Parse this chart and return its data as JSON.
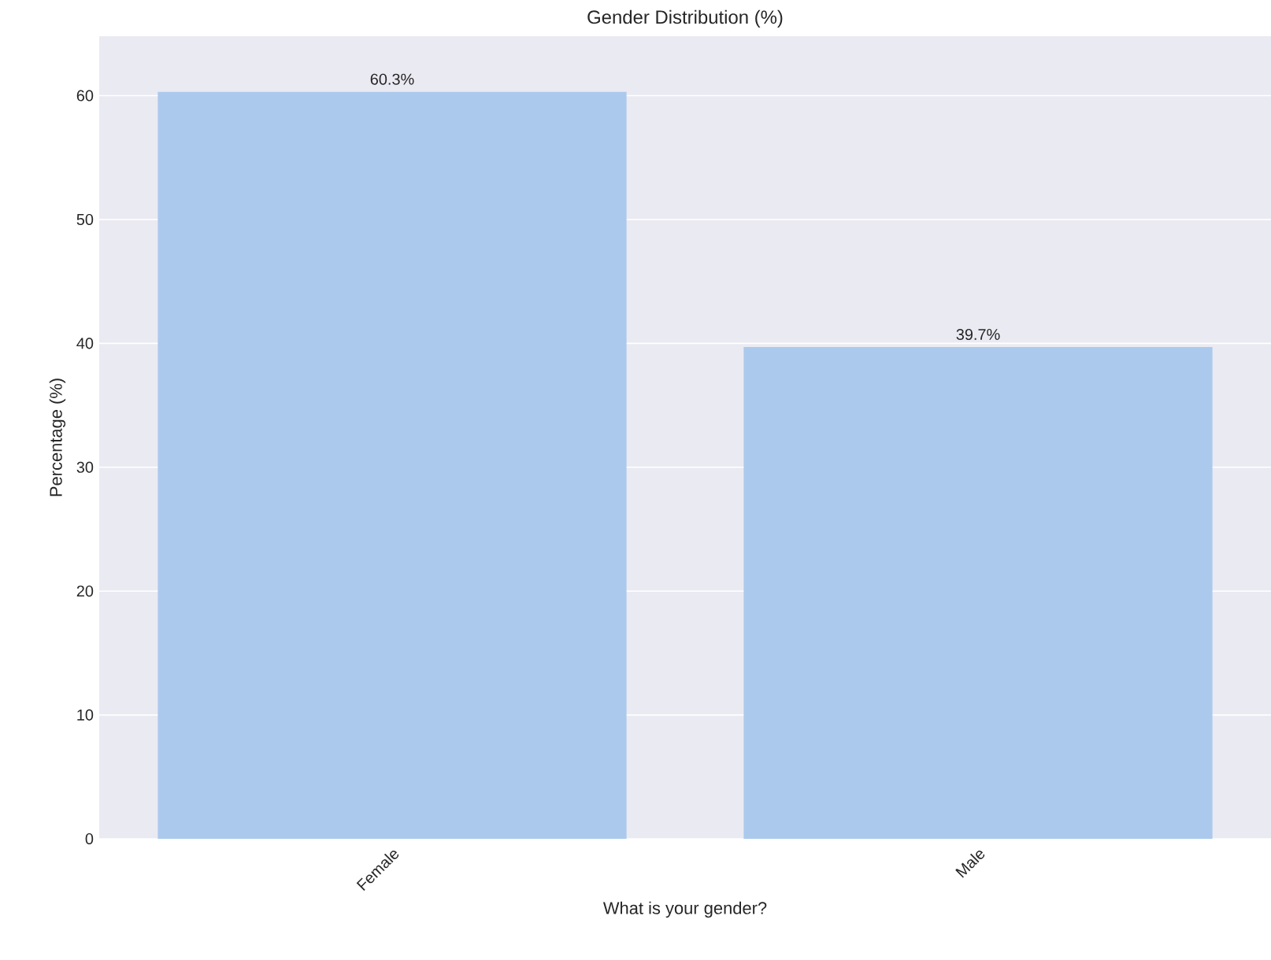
{
  "chart_data": {
    "type": "bar",
    "title": "Gender Distribution (%)",
    "xlabel": "What is your gender?",
    "ylabel": "Percentage (%)",
    "categories": [
      "Female",
      "Male"
    ],
    "values": [
      60.3,
      39.7
    ],
    "value_labels": [
      "60.3%",
      "39.7%"
    ],
    "color": "#abc9ed",
    "ylim": [
      0,
      64.8
    ],
    "yticks": [
      0,
      10,
      20,
      30,
      40,
      50,
      60
    ],
    "grid": "y"
  }
}
